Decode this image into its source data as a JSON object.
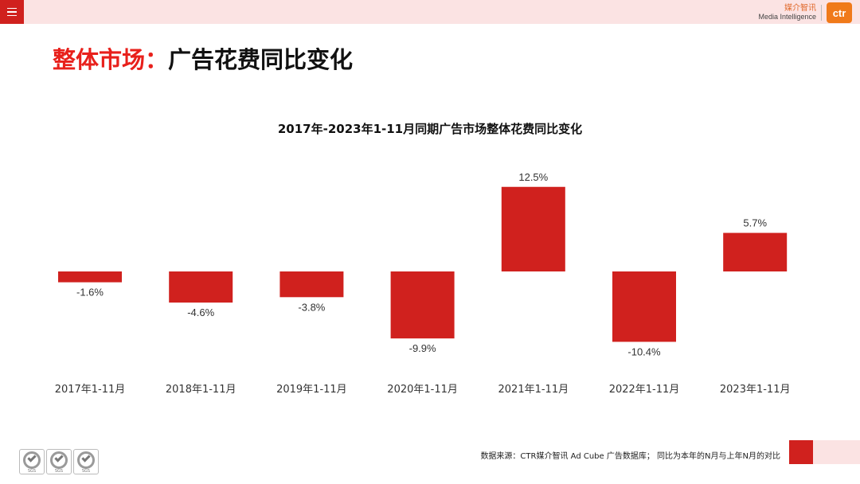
{
  "header": {
    "brand_cn": "媒介智讯",
    "brand_en": "Media Intelligence",
    "logo_text": "ctr"
  },
  "page": {
    "title_prefix": "整体市场：",
    "title_main": "广告花费同比变化"
  },
  "chart_data": {
    "type": "bar",
    "title": "2017年-2023年1-11月同期广告市场整体花费同比变化",
    "categories": [
      "2017年1-11月",
      "2018年1-11月",
      "2019年1-11月",
      "2020年1-11月",
      "2021年1-11月",
      "2022年1-11月",
      "2023年1-11月"
    ],
    "values": [
      -1.6,
      -4.6,
      -3.8,
      -9.9,
      12.5,
      -10.4,
      5.7
    ],
    "labels": [
      "-1.6%",
      "-4.6%",
      "-3.8%",
      "-9.9%",
      "12.5%",
      "-10.4%",
      "5.7%"
    ],
    "unit": "%",
    "color": "#d0211e",
    "xlabel": "",
    "ylabel": "",
    "grid": false,
    "ylim": [
      -10.4,
      12.5
    ]
  },
  "footer": {
    "source": "数据来源：CTR媒介智讯 Ad Cube 广告数据库；  同比为本年的N月与上年N月的对比",
    "cert_text": "SGS"
  }
}
